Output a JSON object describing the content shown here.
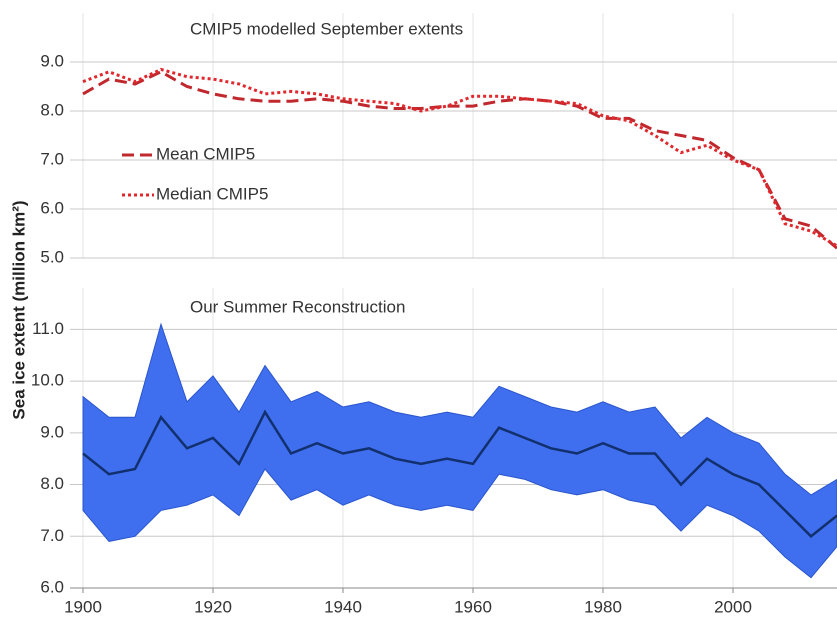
{
  "chart_data": [
    {
      "type": "line",
      "title": "CMIP5 modelled September extents",
      "ylabel": "Sea ice extent (million km²)",
      "legend": "upper left",
      "grid": true,
      "xlim": [
        1898,
        2016
      ],
      "ylim": [
        5.0,
        10.0
      ],
      "yticks": [
        {
          "value": 5,
          "label": "5.0"
        },
        {
          "value": 6,
          "label": "6.0"
        },
        {
          "value": 7,
          "label": "7.0"
        },
        {
          "value": 8,
          "label": "8.0"
        },
        {
          "value": 9,
          "label": "9.0"
        }
      ],
      "x": [
        1900,
        1904,
        1908,
        1912,
        1916,
        1920,
        1924,
        1928,
        1932,
        1936,
        1940,
        1944,
        1948,
        1952,
        1956,
        1960,
        1964,
        1968,
        1972,
        1976,
        1980,
        1984,
        1988,
        1992,
        1996,
        2000,
        2004,
        2008,
        2012,
        2016
      ],
      "series": [
        {
          "name": "Mean CMIP5",
          "color": "#c0282d",
          "style": "dashed",
          "values": [
            8.35,
            8.65,
            8.55,
            8.8,
            8.5,
            8.35,
            8.25,
            8.2,
            8.2,
            8.25,
            8.2,
            8.1,
            8.05,
            8.05,
            8.1,
            8.1,
            8.2,
            8.25,
            8.2,
            8.1,
            7.85,
            7.85,
            7.6,
            7.5,
            7.4,
            7.05,
            6.8,
            5.8,
            5.65,
            5.2
          ]
        },
        {
          "name": "Median CMIP5",
          "color": "#e0282d",
          "style": "dotted",
          "values": [
            8.6,
            8.8,
            8.6,
            8.85,
            8.7,
            8.65,
            8.55,
            8.35,
            8.4,
            8.35,
            8.25,
            8.2,
            8.15,
            8.0,
            8.1,
            8.3,
            8.3,
            8.25,
            8.2,
            8.15,
            7.9,
            7.8,
            7.5,
            7.15,
            7.3,
            7.0,
            6.8,
            5.7,
            5.55,
            5.25
          ]
        }
      ]
    },
    {
      "type": "line",
      "title": "Our Summer Reconstruction",
      "grid": true,
      "xlim": [
        1898,
        2016
      ],
      "ylim": [
        6.0,
        11.8
      ],
      "yticks": [
        {
          "value": 6,
          "label": "6.0"
        },
        {
          "value": 7,
          "label": "7.0"
        },
        {
          "value": 8,
          "label": "8.0"
        },
        {
          "value": 9,
          "label": "9.0"
        },
        {
          "value": 10,
          "label": "10.0"
        },
        {
          "value": 11,
          "label": "11.0"
        }
      ],
      "xticks": [
        1900,
        1920,
        1940,
        1960,
        1980,
        2000
      ],
      "x": [
        1900,
        1904,
        1908,
        1912,
        1916,
        1920,
        1924,
        1928,
        1932,
        1936,
        1940,
        1944,
        1948,
        1952,
        1956,
        1960,
        1964,
        1968,
        1972,
        1976,
        1980,
        1984,
        1988,
        1992,
        1996,
        2000,
        2004,
        2008,
        2012,
        2016
      ],
      "band": {
        "color": "#3f6fee",
        "upper": [
          9.7,
          9.3,
          9.3,
          11.1,
          9.6,
          10.1,
          9.4,
          10.3,
          9.6,
          9.8,
          9.5,
          9.6,
          9.4,
          9.3,
          9.4,
          9.3,
          9.9,
          9.7,
          9.5,
          9.4,
          9.6,
          9.4,
          9.5,
          8.9,
          9.3,
          9.0,
          8.8,
          8.2,
          7.8,
          8.1
        ],
        "lower": [
          7.5,
          6.9,
          7.0,
          7.5,
          7.6,
          7.8,
          7.4,
          8.3,
          7.7,
          7.9,
          7.6,
          7.8,
          7.6,
          7.5,
          7.6,
          7.5,
          8.2,
          8.1,
          7.9,
          7.8,
          7.9,
          7.7,
          7.6,
          7.1,
          7.6,
          7.4,
          7.1,
          6.6,
          6.2,
          6.8
        ]
      },
      "series": [
        {
          "color": "#12306e",
          "style": "solid",
          "values": [
            8.6,
            8.2,
            8.3,
            9.3,
            8.7,
            8.9,
            8.4,
            9.4,
            8.6,
            8.8,
            8.6,
            8.7,
            8.5,
            8.4,
            8.5,
            8.4,
            9.1,
            8.9,
            8.7,
            8.6,
            8.8,
            8.6,
            8.6,
            8.0,
            8.5,
            8.2,
            8.0,
            7.5,
            7.0,
            7.4
          ]
        }
      ]
    }
  ]
}
